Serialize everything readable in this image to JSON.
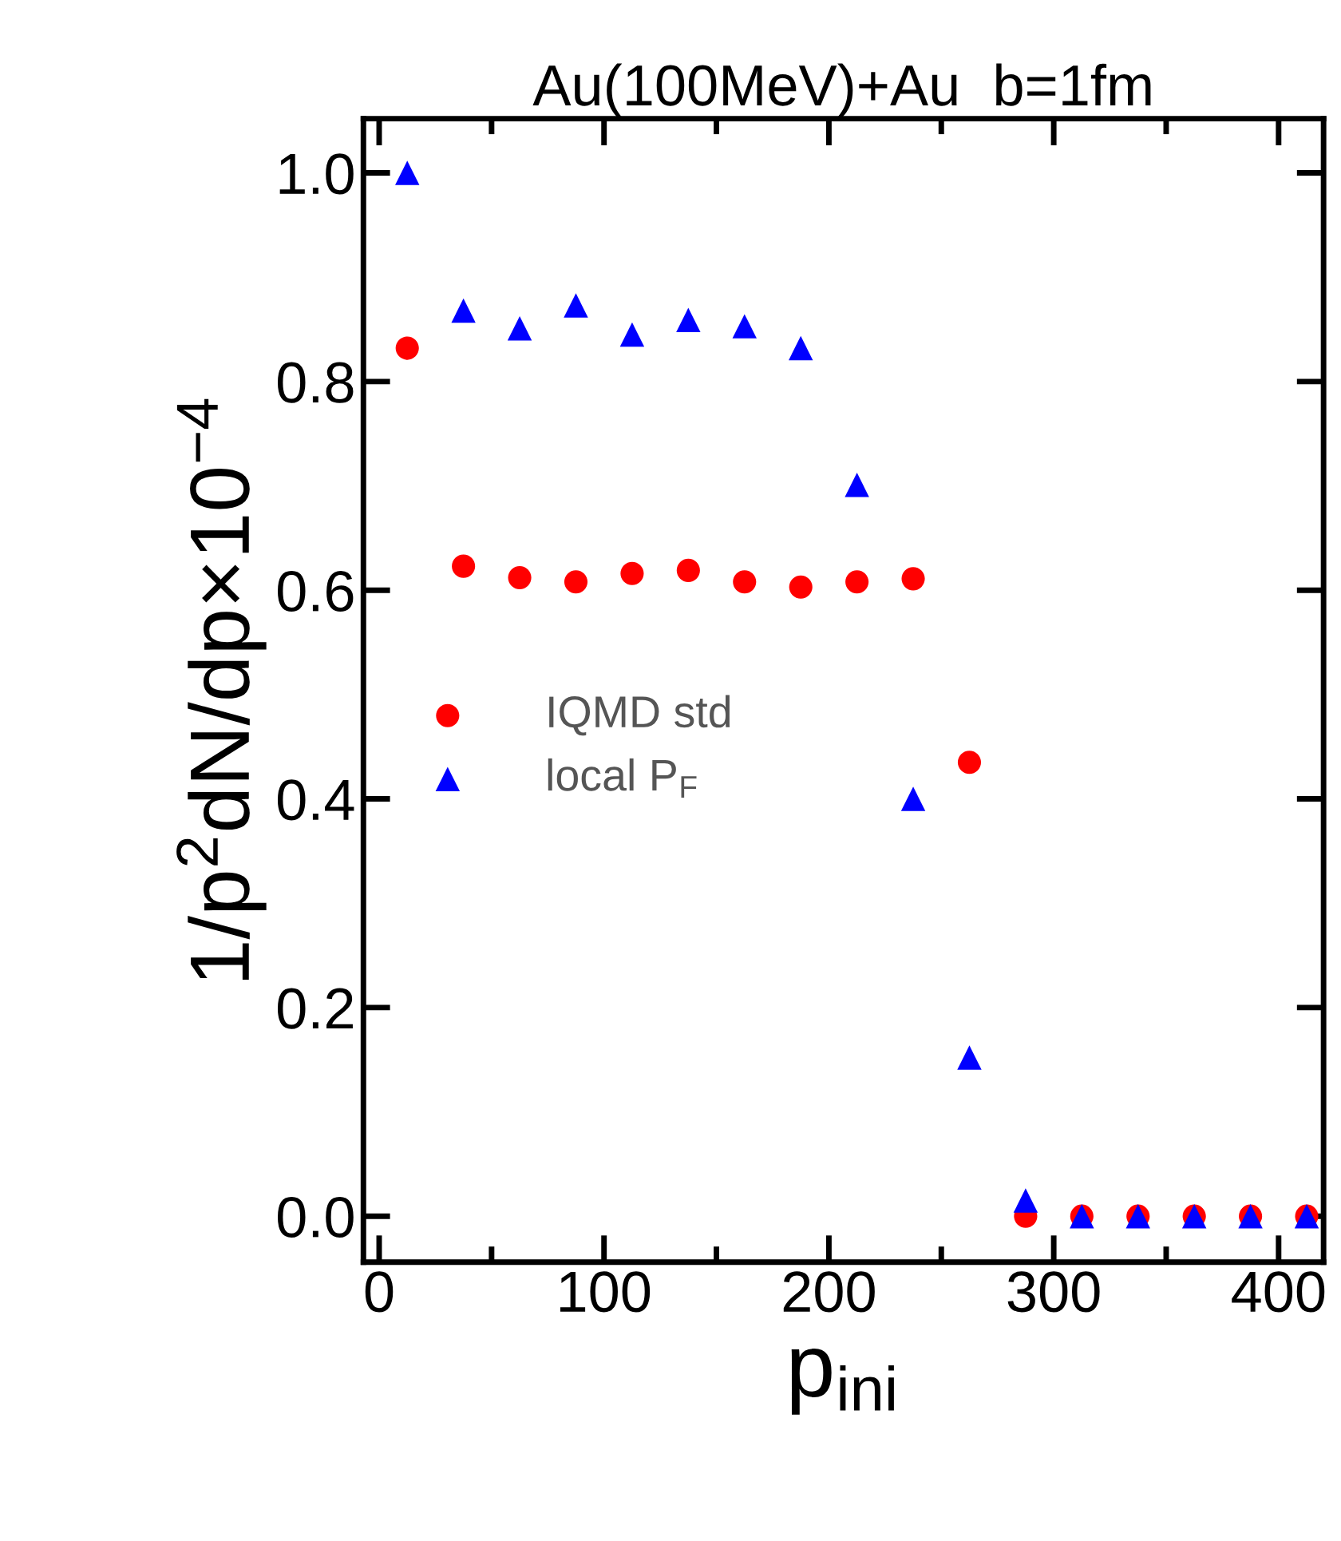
{
  "chart_data": {
    "type": "scatter",
    "title": "Au(100MeV)+Au  b=1fm",
    "xlabel": "p$_{ini}$",
    "ylabel": "1/p$^{2}$dN/dp×10$^{−4}$",
    "x": [
      12.5,
      37.5,
      62.5,
      87.5,
      112.5,
      137.5,
      162.5,
      187.5,
      212.5,
      237.5,
      262.5,
      287.5,
      312.5,
      337.5,
      362.5,
      387.5,
      412.5
    ],
    "series": [
      {
        "name": "IQMD std",
        "color": "#ff0000",
        "marker": "circle",
        "values": [
          0.832,
          0.623,
          0.612,
          0.608,
          0.616,
          0.619,
          0.608,
          0.603,
          0.608,
          0.611,
          0.435,
          0.0,
          0.0,
          0.0,
          0.0,
          0.0,
          0.0
        ]
      },
      {
        "name": "local P$_{F}$",
        "color": "#0000ff",
        "marker": "triangle",
        "values": [
          1.0,
          0.868,
          0.851,
          0.873,
          0.845,
          0.859,
          0.853,
          0.832,
          0.701,
          0.4,
          0.152,
          0.015,
          0.0,
          0.0,
          0.0,
          0.0,
          0.0
        ]
      }
    ],
    "xlim": [
      -7,
      420
    ],
    "xticks": [
      0,
      100,
      200,
      300,
      400
    ],
    "ylim": [
      -0.044,
      1.052
    ],
    "yticks": [
      {
        "value": 0,
        "label": "0.0"
      },
      0.2,
      0.4,
      0.6,
      0.8,
      {
        "value": 1,
        "label": "1.0"
      }
    ],
    "grid": false,
    "legend": "center left"
  }
}
